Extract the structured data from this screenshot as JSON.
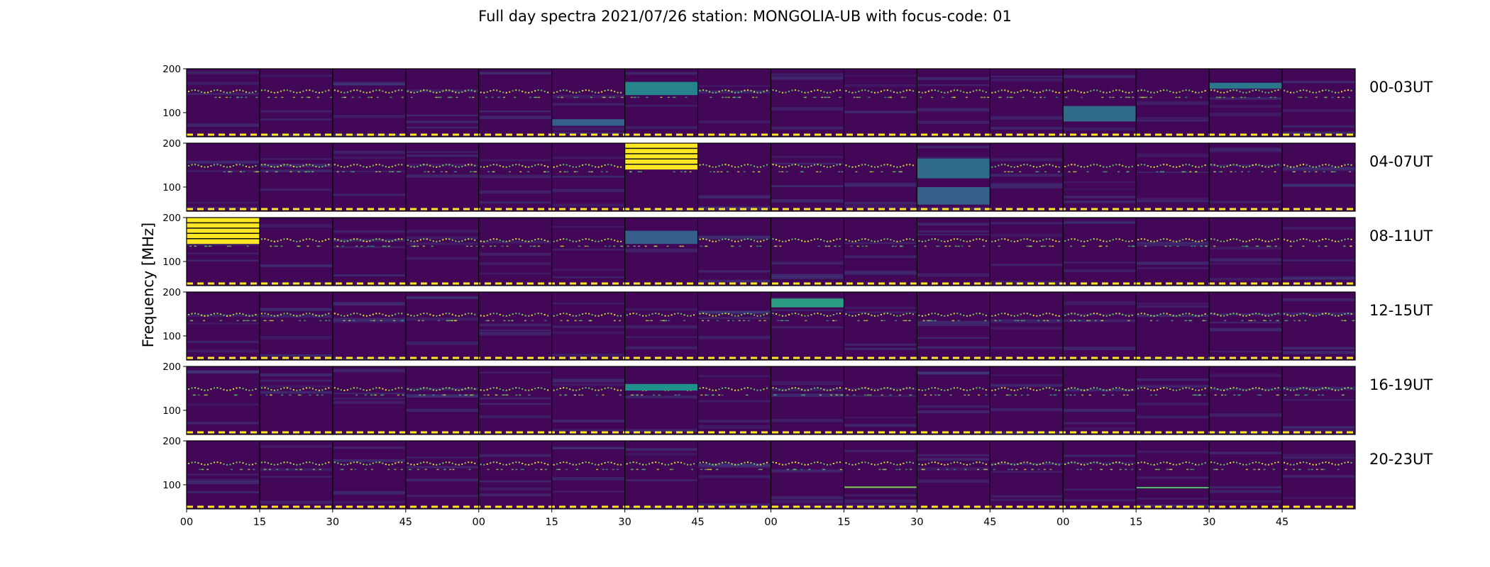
{
  "chart_data": {
    "type": "heatmap",
    "title": "Full day spectra 2021/07/26 station: MONGOLIA-UB with focus-code: 01",
    "ylabel": "Frequency [MHz]",
    "xlabel": "",
    "ylim": [
      45,
      200
    ],
    "y_ticks": [
      "200",
      "100"
    ],
    "x_ticks": [
      "00",
      "15",
      "30",
      "45",
      "00",
      "15",
      "30",
      "45",
      "00",
      "15",
      "30",
      "45",
      "00",
      "15",
      "30",
      "45"
    ],
    "colormap": [
      "#440154",
      "#3b528b",
      "#21918c",
      "#5ec962",
      "#fde725"
    ],
    "rows": [
      {
        "label": "00-03UT",
        "events": [
          {
            "panel": 6,
            "fmin": 140,
            "fmax": 170,
            "level": 0.45
          },
          {
            "panel": 14,
            "fmin": 155,
            "fmax": 168,
            "level": 0.4
          },
          {
            "panel": 12,
            "fmin": 80,
            "fmax": 115,
            "level": 0.35
          },
          {
            "panel": 5,
            "fmin": 70,
            "fmax": 85,
            "level": 0.3
          }
        ]
      },
      {
        "label": "04-07UT",
        "events": [
          {
            "panel": 6,
            "fmin": 140,
            "fmax": 200,
            "level": 1.0
          },
          {
            "panel": 10,
            "fmin": 120,
            "fmax": 165,
            "level": 0.35
          },
          {
            "panel": 10,
            "fmin": 60,
            "fmax": 100,
            "level": 0.3
          }
        ]
      },
      {
        "label": "08-11UT",
        "events": [
          {
            "panel": 0,
            "fmin": 140,
            "fmax": 200,
            "level": 1.0
          },
          {
            "panel": 6,
            "fmin": 140,
            "fmax": 170,
            "level": 0.3
          }
        ]
      },
      {
        "label": "12-15UT",
        "events": [
          {
            "panel": 8,
            "fmin": 165,
            "fmax": 185,
            "level": 0.55
          }
        ]
      },
      {
        "label": "16-19UT",
        "events": [
          {
            "panel": 6,
            "fmin": 145,
            "fmax": 160,
            "level": 0.5
          }
        ]
      },
      {
        "label": "20-23UT",
        "events": [
          {
            "panel": 9,
            "fmin": 93,
            "fmax": 96,
            "level": 0.8
          },
          {
            "panel": 13,
            "fmin": 92,
            "fmax": 95,
            "level": 0.7
          }
        ]
      }
    ]
  }
}
